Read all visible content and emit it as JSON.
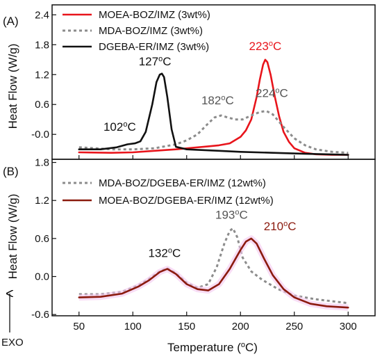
{
  "chart_data": [
    {
      "panel_label": "(A)",
      "type": "line",
      "xlabel": "",
      "ylabel": "Heat Flow (W/g)",
      "xlim": [
        25,
        325
      ],
      "ylim": [
        -0.5,
        2.6
      ],
      "x_ticks": [
        "50",
        "100",
        "150",
        "200",
        "250",
        "300"
      ],
      "y_ticks": [
        "-0.0",
        "0.6",
        "1.2",
        "1.8",
        "2.4"
      ],
      "y_tick_values": [
        0.0,
        0.6,
        1.2,
        1.8,
        2.4
      ],
      "legend_position": "top-center",
      "series": [
        {
          "name": "MOEA-BOZ/IMZ (3wt%)",
          "color": "#e8141b",
          "style": "solid",
          "x": [
            50,
            80,
            100,
            120,
            140,
            155,
            170,
            180,
            190,
            200,
            205,
            210,
            215,
            218,
            221,
            223,
            225,
            228,
            232,
            236,
            240,
            245,
            250,
            260,
            270,
            285,
            300
          ],
          "y": [
            -0.36,
            -0.37,
            -0.36,
            -0.33,
            -0.3,
            -0.27,
            -0.24,
            -0.22,
            -0.18,
            -0.05,
            0.08,
            0.3,
            0.75,
            1.1,
            1.4,
            1.5,
            1.45,
            1.2,
            0.75,
            0.35,
            0.05,
            -0.15,
            -0.28,
            -0.37,
            -0.4,
            -0.41,
            -0.41
          ]
        },
        {
          "name": "MDA-BOZ/IMZ (3wt%)",
          "color": "#8c8c8c",
          "style": "dotted",
          "x": [
            50,
            80,
            100,
            120,
            140,
            150,
            160,
            170,
            176,
            182,
            188,
            195,
            202,
            210,
            218,
            224,
            230,
            240,
            250,
            260,
            270,
            285,
            300
          ],
          "y": [
            -0.26,
            -0.3,
            -0.3,
            -0.28,
            -0.2,
            -0.12,
            0.0,
            0.22,
            0.34,
            0.38,
            0.34,
            0.3,
            0.3,
            0.38,
            0.45,
            0.47,
            0.4,
            0.15,
            -0.08,
            -0.22,
            -0.3,
            -0.35,
            -0.37
          ]
        },
        {
          "name": "DGEBA-ER/IMZ (3wt%)",
          "color": "#111111",
          "style": "solid",
          "x": [
            50,
            70,
            85,
            95,
            102,
            107,
            112,
            118,
            122,
            125,
            127,
            129,
            132,
            136,
            140,
            150,
            160,
            180,
            200,
            230,
            260,
            300
          ],
          "y": [
            -0.3,
            -0.3,
            -0.26,
            -0.2,
            -0.18,
            -0.14,
            0.05,
            0.6,
            1.05,
            1.2,
            1.22,
            1.15,
            0.75,
            0.1,
            -0.25,
            -0.3,
            -0.31,
            -0.33,
            -0.35,
            -0.37,
            -0.39,
            -0.41
          ]
        }
      ],
      "annotations": [
        {
          "text": "223",
          "unit": "oC",
          "x": 223,
          "y": 1.5,
          "color": "#e8141b"
        },
        {
          "text": "127",
          "unit": "oC",
          "x": 127,
          "y": 1.22,
          "color": "#111111"
        },
        {
          "text": "182",
          "unit": "oC",
          "x": 182,
          "y": 0.38,
          "color": "#555555"
        },
        {
          "text": "224",
          "unit": "oC",
          "x": 224,
          "y": 0.47,
          "color": "#555555"
        },
        {
          "text": "102",
          "unit": "oC",
          "x": 102,
          "y": -0.18,
          "color": "#111111"
        }
      ]
    },
    {
      "panel_label": "(B)",
      "type": "line",
      "xlabel": "Temperature (oC)",
      "ylabel": "Heat Flow (W/g)",
      "xlim": [
        25,
        325
      ],
      "ylim": [
        -0.62,
        1.85
      ],
      "x_ticks": [
        "50",
        "100",
        "150",
        "200",
        "250",
        "300"
      ],
      "y_ticks": [
        "-0.6",
        "0.0",
        "0.6",
        "1.2",
        "1.8"
      ],
      "y_tick_values": [
        -0.6,
        0.0,
        0.6,
        1.2,
        1.8
      ],
      "legend_position": "top-center",
      "series": [
        {
          "name": "MDA-BOZ/DGEBA-ER/IMZ (12wt%)",
          "color": "#8c8c8c",
          "style": "dotted",
          "x": [
            50,
            70,
            90,
            105,
            115,
            125,
            132,
            140,
            150,
            160,
            170,
            178,
            185,
            190,
            193,
            197,
            202,
            210,
            220,
            235,
            250,
            270,
            300
          ],
          "y": [
            -0.28,
            -0.28,
            -0.24,
            -0.14,
            -0.04,
            0.08,
            0.13,
            0.05,
            -0.1,
            -0.18,
            -0.12,
            0.15,
            0.52,
            0.72,
            0.76,
            0.62,
            0.3,
            0.08,
            -0.05,
            -0.2,
            -0.3,
            -0.36,
            -0.42
          ]
        },
        {
          "name": "MOEA-BOZ/DGEBA-ER/IMZ (12wt%)",
          "color": "#8b1a0e",
          "style": "solid",
          "x": [
            50,
            70,
            90,
            105,
            115,
            125,
            132,
            140,
            150,
            160,
            170,
            180,
            190,
            200,
            205,
            210,
            215,
            222,
            230,
            240,
            250,
            265,
            280,
            300
          ],
          "y": [
            -0.33,
            -0.32,
            -0.27,
            -0.16,
            -0.06,
            0.07,
            0.12,
            0.04,
            -0.12,
            -0.2,
            -0.22,
            -0.12,
            0.12,
            0.42,
            0.55,
            0.6,
            0.52,
            0.28,
            0.02,
            -0.2,
            -0.33,
            -0.43,
            -0.47,
            -0.49
          ]
        }
      ],
      "annotations": [
        {
          "text": "193",
          "unit": "oC",
          "x": 193,
          "y": 0.76,
          "color": "#555555"
        },
        {
          "text": "210",
          "unit": "oC",
          "x": 210,
          "y": 0.6,
          "color": "#8b1a0e"
        },
        {
          "text": "132",
          "unit": "oC",
          "x": 132,
          "y": 0.13,
          "color": "#111111"
        }
      ],
      "arrow_label": "EXO"
    }
  ]
}
